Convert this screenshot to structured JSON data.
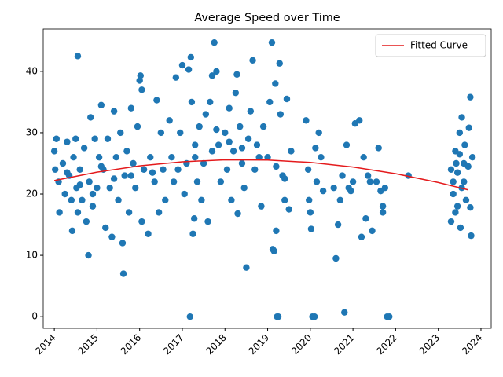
{
  "chart_data": {
    "type": "scatter",
    "title": "Average Speed over Time",
    "xlim": [
      2013.74,
      2024.24
    ],
    "xticks": [
      2014,
      2015,
      2016,
      2017,
      2018,
      2019,
      2020,
      2021,
      2022,
      2023,
      2024
    ],
    "ylim": [
      -1.9,
      46.9
    ],
    "yticks": [
      0,
      10,
      20,
      30,
      40
    ],
    "legend": "upper right",
    "series": [
      {
        "color": "#1f77b4",
        "x": [
          2014.0,
          2014.02,
          2014.05,
          2014.1,
          2014.12,
          2014.2,
          2014.25,
          2014.3,
          2014.35,
          2014.4,
          2014.42,
          2014.45,
          2014.5,
          2014.52,
          2014.55,
          2014.55,
          2014.6,
          2014.65,
          2014.7,
          2014.75,
          2014.8,
          2014.82,
          2014.85,
          2014.9,
          2014.95,
          2015.0,
          2015.05,
          2015.1,
          2015.15,
          2015.2,
          2015.25,
          2015.3,
          2015.35,
          2015.4,
          2015.45,
          2015.5,
          2015.55,
          2015.6,
          2015.62,
          2015.65,
          2015.7,
          2015.75,
          2015.8,
          2015.85,
          2015.9,
          2015.95,
          2016.0,
          2016.02,
          2016.05,
          2016.05,
          2016.1,
          2016.2,
          2016.25,
          2016.35,
          2016.4,
          2016.45,
          2016.5,
          2016.55,
          2016.6,
          2016.7,
          2016.75,
          2016.8,
          2016.85,
          2016.95,
          2017.0,
          2017.05,
          2017.1,
          2017.15,
          2017.18,
          2017.2,
          2017.22,
          2017.25,
          2017.28,
          2017.3,
          2017.35,
          2017.4,
          2017.45,
          2017.5,
          2017.55,
          2017.6,
          2017.65,
          2017.7,
          2017.75,
          2017.8,
          2017.85,
          2017.9,
          2018.0,
          2018.05,
          2018.1,
          2018.15,
          2018.2,
          2018.25,
          2018.28,
          2018.3,
          2018.35,
          2018.4,
          2018.45,
          2018.5,
          2018.55,
          2018.6,
          2018.65,
          2018.7,
          2018.75,
          2018.85,
          2018.9,
          2019.0,
          2019.05,
          2019.1,
          2019.12,
          2019.15,
          2019.18,
          2019.2,
          2019.22,
          2019.25,
          2019.28,
          2019.3,
          2019.35,
          2019.4,
          2019.45,
          2019.5,
          2019.55,
          2019.9,
          2019.95,
          2019.97,
          2020.0,
          2020.02,
          2020.05,
          2020.1,
          2020.12,
          2020.15,
          2020.2,
          2020.25,
          2020.55,
          2020.6,
          2020.65,
          2020.7,
          2020.75,
          2020.8,
          2020.85,
          2020.9,
          2021.0,
          2021.05,
          2021.15,
          2021.2,
          2021.25,
          2021.3,
          2021.35,
          2021.45,
          2021.55,
          2021.6,
          2021.7,
          2021.7,
          2021.75,
          2021.8,
          2021.85,
          2022.3,
          2023.3,
          2023.35,
          2023.4,
          2023.42,
          2023.45,
          2023.5,
          2023.52,
          2023.55,
          2023.6,
          2023.62,
          2023.65,
          2023.7,
          2023.72,
          2023.75,
          2023.75,
          2023.77,
          2023.8,
          2023.35,
          2023.45,
          2023.5,
          2023.4,
          2023.55,
          2023.3,
          2023.6,
          2014.3,
          2014.6,
          2014.9,
          2015.1,
          2015.4,
          2015.8,
          2016.3,
          2016.9,
          2017.3,
          2017.7,
          2018.1,
          2018.4,
          2018.8,
          2019.2,
          2019.4,
          2020.3,
          2020.95,
          2021.4,
          2021.65,
          2017.8
        ],
        "values": [
          27,
          24,
          29,
          22,
          17,
          25,
          20,
          28.5,
          23,
          19,
          14,
          26,
          29,
          21,
          17,
          42.5,
          24,
          19,
          27.5,
          15.5,
          10,
          22,
          32.5,
          18,
          29,
          21,
          26,
          34.5,
          24,
          14.5,
          29,
          21,
          13,
          33.5,
          26,
          19,
          30,
          12,
          7,
          23,
          27,
          17,
          34,
          25,
          21,
          31,
          38.5,
          39.3,
          37,
          15.5,
          24,
          13.5,
          26,
          22,
          35.3,
          17,
          30,
          24,
          19,
          32,
          26,
          22,
          39,
          30,
          41,
          20,
          25,
          40.3,
          0,
          42.3,
          35,
          13.5,
          16,
          28,
          22,
          31,
          19,
          25,
          33,
          15.5,
          35,
          39.3,
          44.7,
          40,
          28,
          22,
          30,
          24,
          34,
          19,
          27,
          36.5,
          39.5,
          16.8,
          31,
          25,
          21,
          8,
          29,
          33.5,
          41.8,
          24,
          28,
          18,
          31,
          26,
          35,
          44.7,
          11,
          10.7,
          38,
          14,
          0,
          0,
          41.3,
          33,
          23,
          19,
          35.5,
          17.5,
          27,
          32,
          24,
          19,
          17,
          14.3,
          0,
          0,
          27.5,
          22,
          30,
          26,
          21,
          9.5,
          15,
          19,
          23,
          0.7,
          28,
          21,
          22,
          31.5,
          32,
          13,
          26,
          16,
          23,
          14,
          22,
          27.5,
          18,
          17,
          21,
          0,
          0,
          23,
          15.5,
          20,
          27,
          25,
          18,
          30,
          14.5,
          32.5,
          22,
          28,
          19,
          24.5,
          30.8,
          35.8,
          17.8,
          13.2,
          26,
          22,
          23.5,
          26.5,
          17,
          21,
          24,
          25,
          23.5,
          21.5,
          20,
          24.5,
          22.5,
          23,
          23.5,
          24,
          26,
          27,
          28.5,
          27.5,
          26,
          24.5,
          22.5,
          20.5,
          20.5,
          22,
          20.5,
          30.5
        ]
      },
      {
        "name": "Fitted Curve",
        "type": "line",
        "color": "#e41a1c",
        "x": [
          2014,
          2015,
          2016,
          2017,
          2018,
          2019,
          2020,
          2021,
          2022,
          2023,
          2023.7
        ],
        "values": [
          22.2,
          23.57,
          24.59,
          25.26,
          25.57,
          25.54,
          25.15,
          24.41,
          23.32,
          21.88,
          20.67
        ]
      }
    ]
  }
}
